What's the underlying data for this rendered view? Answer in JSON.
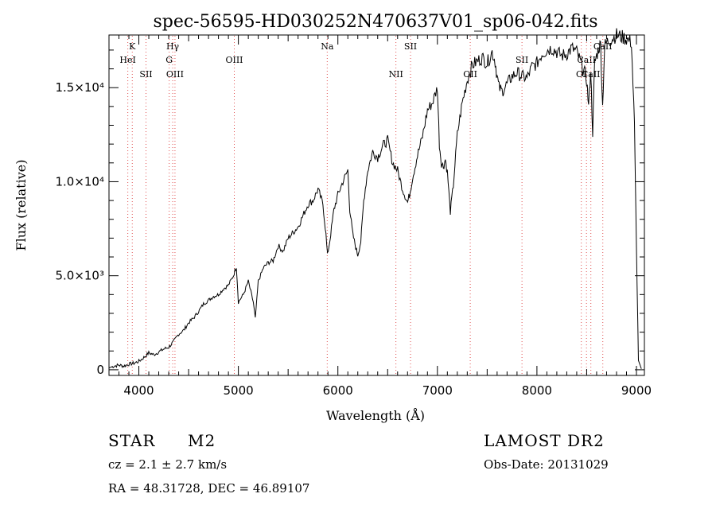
{
  "chart_data": {
    "type": "line",
    "title": "spec-56595-HD030252N470637V01_sp06-042.fits",
    "xlabel": "Wavelength (Å)",
    "ylabel": "Flux (relative)",
    "xlim": [
      3700,
      9080
    ],
    "ylim": [
      -300,
      17800
    ],
    "x_ticks": [
      4000,
      5000,
      6000,
      7000,
      8000,
      9000
    ],
    "y_ticks": [
      {
        "value": 0,
        "label": "0"
      },
      {
        "value": 5000,
        "label": "5.0×10³"
      },
      {
        "value": 10000,
        "label": "1.0×10⁴"
      },
      {
        "value": 15000,
        "label": "1.5×10⁴"
      }
    ],
    "grid": false,
    "series": [
      {
        "x": [
          3700,
          3750,
          3800,
          3850,
          3900,
          3950,
          4000,
          4050,
          4100,
          4150,
          4200,
          4250,
          4300,
          4350,
          4400,
          4450,
          4500,
          4550,
          4600,
          4650,
          4700,
          4750,
          4800,
          4850,
          4900,
          4950,
          4980,
          5000,
          5050,
          5100,
          5150,
          5170,
          5200,
          5250,
          5300,
          5350,
          5400,
          5450,
          5500,
          5550,
          5600,
          5650,
          5700,
          5750,
          5800,
          5850,
          5880,
          5895,
          5920,
          5960,
          6000,
          6050,
          6100,
          6120,
          6150,
          6180,
          6200,
          6230,
          6260,
          6300,
          6350,
          6400,
          6450,
          6500,
          6550,
          6600,
          6650,
          6700,
          6720,
          6750,
          6800,
          6850,
          6900,
          6950,
          7000,
          7020,
          7040,
          7060,
          7080,
          7100,
          7130,
          7160,
          7200,
          7250,
          7300,
          7350,
          7400,
          7450,
          7500,
          7550,
          7580,
          7600,
          7620,
          7650,
          7700,
          7750,
          7800,
          7850,
          7900,
          7950,
          8000,
          8050,
          8100,
          8150,
          8200,
          8250,
          8300,
          8350,
          8400,
          8450,
          8480,
          8500,
          8520,
          8540,
          8560,
          8580,
          8600,
          8620,
          8640,
          8660,
          8680,
          8700,
          8750,
          8800,
          8850,
          8900,
          8950,
          8980,
          9000,
          9020,
          9050
        ],
        "values": [
          100,
          200,
          250,
          200,
          300,
          350,
          450,
          650,
          900,
          800,
          950,
          1100,
          1200,
          1500,
          1900,
          2100,
          2500,
          2750,
          3100,
          3500,
          3700,
          3900,
          4000,
          4300,
          4500,
          5000,
          5500,
          3600,
          4000,
          4700,
          3600,
          2700,
          4700,
          5400,
          5700,
          5800,
          6600,
          6300,
          7000,
          7300,
          7600,
          8200,
          8800,
          9000,
          9600,
          8800,
          7200,
          6100,
          6900,
          8500,
          9300,
          10000,
          10600,
          8500,
          7200,
          6500,
          6100,
          6800,
          9000,
          10600,
          11600,
          11300,
          11900,
          12200,
          11000,
          10600,
          9600,
          8900,
          9300,
          10200,
          11400,
          12400,
          13800,
          14200,
          15000,
          12000,
          11000,
          10800,
          11200,
          10500,
          8400,
          9800,
          12500,
          14200,
          15400,
          16200,
          16400,
          16600,
          16300,
          16900,
          16400,
          15600,
          15000,
          14800,
          15200,
          15600,
          15800,
          15600,
          15500,
          16100,
          16300,
          16800,
          17000,
          17100,
          16900,
          16700,
          16800,
          17100,
          16900,
          16200,
          15800,
          15400,
          14000,
          16000,
          12600,
          16300,
          16700,
          17100,
          17300,
          14000,
          17200,
          17400,
          17600,
          17800,
          17700,
          17600,
          17400,
          13000,
          6500,
          500,
          50
        ]
      }
    ],
    "emission_lines": [
      {
        "label": "K",
        "wavelength": 3934,
        "row": 1
      },
      {
        "label": "HeI",
        "wavelength": 3889,
        "row": 2
      },
      {
        "label": "SII",
        "wavelength": 4072,
        "row": 3
      },
      {
        "label": "Hγ",
        "wavelength": 4340,
        "row": 1
      },
      {
        "label": "G",
        "wavelength": 4305,
        "row": 2
      },
      {
        "label": "OIII",
        "wavelength": 4363,
        "row": 3
      },
      {
        "label": "OIII",
        "wavelength": 4959,
        "row": 2
      },
      {
        "label": "Na",
        "wavelength": 5893,
        "row": 1
      },
      {
        "label": "NII",
        "wavelength": 6583,
        "row": 3
      },
      {
        "label": "SII",
        "wavelength": 6730,
        "row": 1
      },
      {
        "label": "OII",
        "wavelength": 7330,
        "row": 3
      },
      {
        "label": "SII",
        "wavelength": 7850,
        "row": 2
      },
      {
        "label": "OI",
        "wavelength": 8446,
        "row": 3
      },
      {
        "label": "CaII",
        "wavelength": 8498,
        "row": 2
      },
      {
        "label": "CaII",
        "wavelength": 8542,
        "row": 3
      },
      {
        "label": "CaII",
        "wavelength": 8662,
        "row": 1
      }
    ]
  },
  "info": {
    "object_class": "STAR",
    "subclass": "M2",
    "survey": "LAMOST DR2",
    "redshift": "cz = 2.1 ± 2.7 km/s",
    "obs_date": "Obs-Date: 20131029",
    "coords": "RA =  48.31728, DEC =  46.89107"
  }
}
